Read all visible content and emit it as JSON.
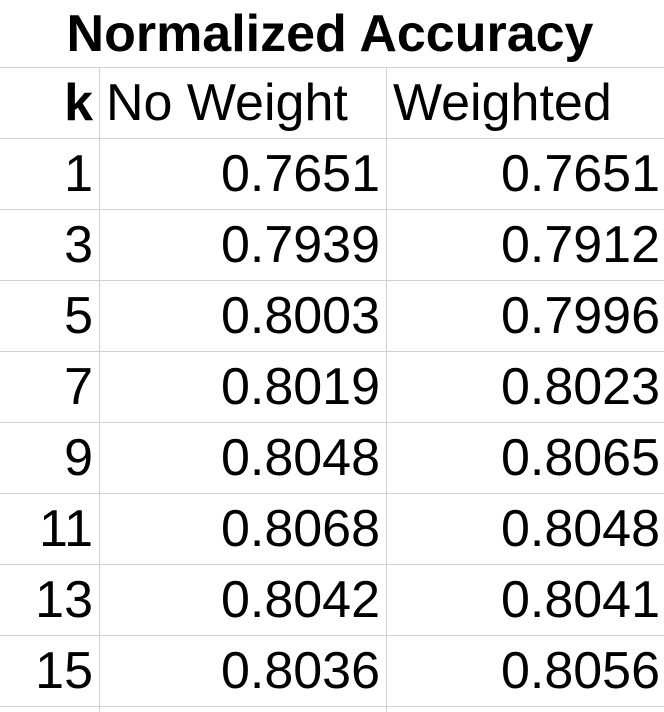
{
  "title": "Normalized Accuracy",
  "headers": {
    "k": "k",
    "no_weight": "No Weight",
    "weighted": "Weighted"
  },
  "rows": [
    {
      "k": "1",
      "no_weight": "0.7651",
      "weighted": "0.7651"
    },
    {
      "k": "3",
      "no_weight": "0.7939",
      "weighted": "0.7912"
    },
    {
      "k": "5",
      "no_weight": "0.8003",
      "weighted": "0.7996"
    },
    {
      "k": "7",
      "no_weight": "0.8019",
      "weighted": "0.8023"
    },
    {
      "k": "9",
      "no_weight": "0.8048",
      "weighted": "0.8065"
    },
    {
      "k": "11",
      "no_weight": "0.8068",
      "weighted": "0.8048"
    },
    {
      "k": "13",
      "no_weight": "0.8042",
      "weighted": "0.8041"
    },
    {
      "k": "15",
      "no_weight": "0.8036",
      "weighted": "0.8056"
    }
  ],
  "colors": {
    "gridline": "#d0d0d0",
    "text": "#000000",
    "background": "#ffffff"
  }
}
